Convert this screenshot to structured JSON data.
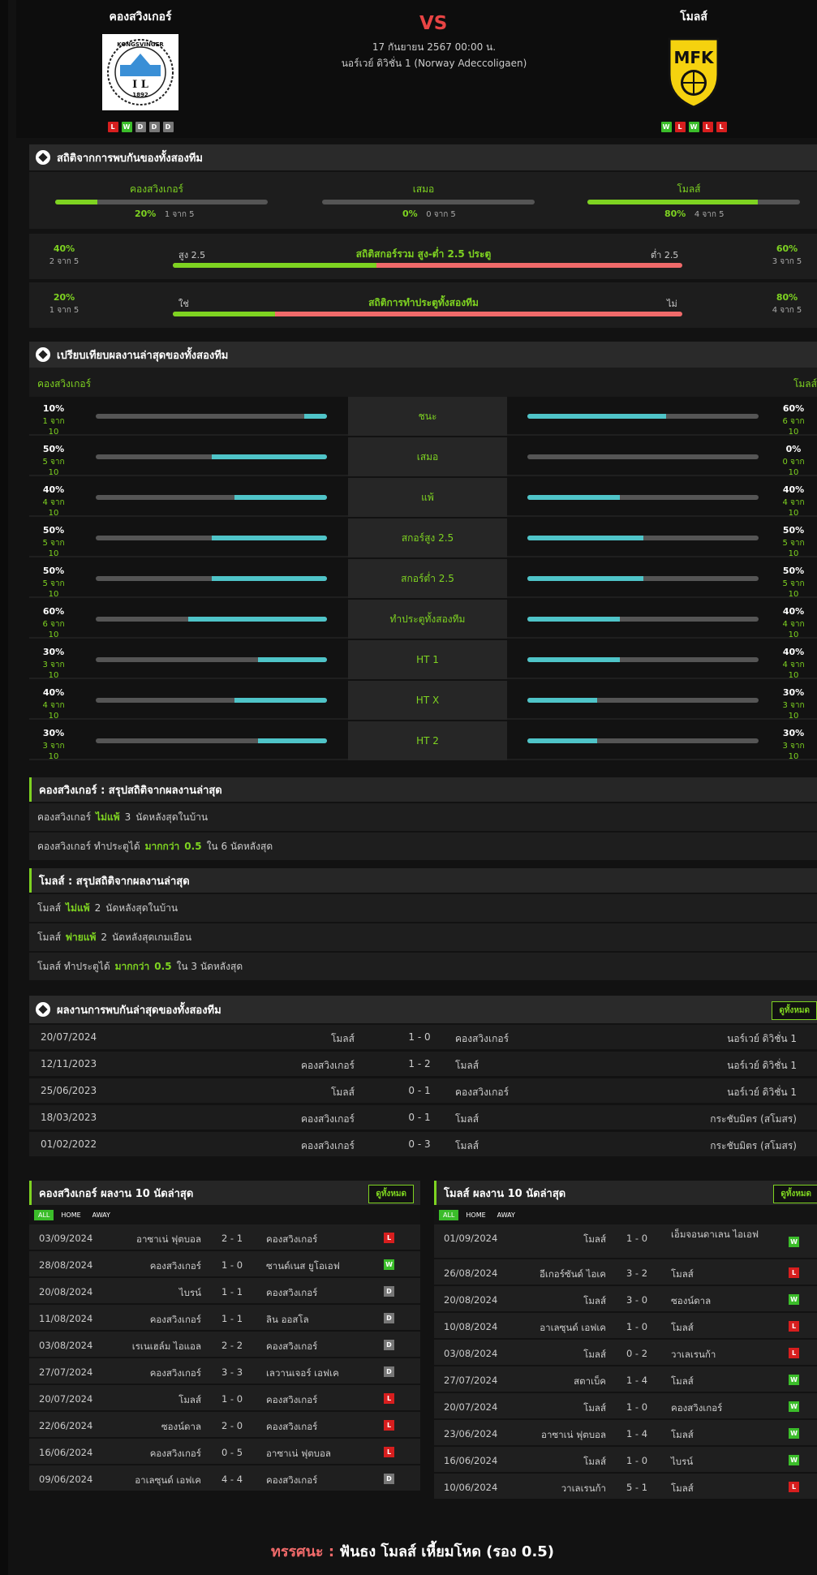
{
  "home": {
    "name": "คองสวิงเกอร์",
    "form": [
      "L",
      "W",
      "D",
      "D",
      "D"
    ]
  },
  "away": {
    "name": "โมลส์",
    "form": [
      "W",
      "L",
      "W",
      "L",
      "L"
    ]
  },
  "match": {
    "vs": "VS",
    "date": "17 กันยายน 2567 00:00 น.",
    "league": "นอร์เวย์ ดิวิชั่น 1 (Norway Adeccoligaen)"
  },
  "h2h_stats": {
    "title": "สถิติจากการพบกันของทั้งสองทีม",
    "home": {
      "label": "คองสวิงเกอร์",
      "pct": "20%",
      "count": "1 จาก 5",
      "value": 0.2
    },
    "draw": {
      "label": "เสมอ",
      "pct": "0%",
      "count": "0 จาก 5",
      "value": 0
    },
    "away": {
      "label": "โมลส์",
      "pct": "80%",
      "count": "4 จาก 5",
      "value": 0.8
    },
    "ou": {
      "title": "สถิติสกอร์รวม สูง-ต่ำ 2.5 ประตู",
      "left_pct": "40%",
      "left_count": "2 จาก 5",
      "right_pct": "60%",
      "right_count": "3 จาก 5",
      "over": "สูง 2.5",
      "under": "ต่ำ 2.5",
      "value": 0.4
    },
    "btts": {
      "title": "สถิติการทำประตูทั้งสองทีม",
      "left_pct": "20%",
      "left_count": "1 จาก 5",
      "right_pct": "80%",
      "right_count": "4 จาก 5",
      "yes": "ใช่",
      "no": "ไม่",
      "value": 0.2
    }
  },
  "compare": {
    "title": "เปรียบเทียบผลงานล่าสุดของทั้งสองทีม",
    "home": "คองสวิงเกอร์",
    "away": "โมลส์",
    "rows": [
      {
        "label": "ชนะ",
        "hp": "10%",
        "hc": "1 จาก 10",
        "hv": 0.1,
        "ap": "60%",
        "ac": "6 จาก 10",
        "av": 0.6
      },
      {
        "label": "เสมอ",
        "hp": "50%",
        "hc": "5 จาก 10",
        "hv": 0.5,
        "ap": "0%",
        "ac": "0 จาก 10",
        "av": 0
      },
      {
        "label": "แพ้",
        "hp": "40%",
        "hc": "4 จาก 10",
        "hv": 0.4,
        "ap": "40%",
        "ac": "4 จาก 10",
        "av": 0.4
      },
      {
        "label": "สกอร์สูง 2.5",
        "hp": "50%",
        "hc": "5 จาก 10",
        "hv": 0.5,
        "ap": "50%",
        "ac": "5 จาก 10",
        "av": 0.5
      },
      {
        "label": "สกอร์ต่ำ 2.5",
        "hp": "50%",
        "hc": "5 จาก 10",
        "hv": 0.5,
        "ap": "50%",
        "ac": "5 จาก 10",
        "av": 0.5
      },
      {
        "label": "ทำประตูทั้งสองทีม",
        "hp": "60%",
        "hc": "6 จาก 10",
        "hv": 0.6,
        "ap": "40%",
        "ac": "4 จาก 10",
        "av": 0.4
      },
      {
        "label": "HT 1",
        "hp": "30%",
        "hc": "3 จาก 10",
        "hv": 0.3,
        "ap": "40%",
        "ac": "4 จาก 10",
        "av": 0.4
      },
      {
        "label": "HT X",
        "hp": "40%",
        "hc": "4 จาก 10",
        "hv": 0.4,
        "ap": "30%",
        "ac": "3 จาก 10",
        "av": 0.3
      },
      {
        "label": "HT 2",
        "hp": "30%",
        "hc": "3 จาก 10",
        "hv": 0.3,
        "ap": "30%",
        "ac": "3 จาก 10",
        "av": 0.3
      }
    ]
  },
  "summary_home": {
    "title": "คองสวิงเกอร์ : สรุปสถิติจากผลงานล่าสุด",
    "rows": [
      [
        "คองสวิงเกอร์",
        "ไม่แพ้",
        "3",
        "นัดหลังสุดในบ้าน",
        "",
        ""
      ],
      [
        "คองสวิงเกอร์ ทำประตูได้",
        "มากกว่า",
        "0.5",
        "ใน 6 นัดหลังสุด",
        "",
        ""
      ]
    ]
  },
  "summary_away": {
    "title": "โมลส์ : สรุปสถิติจากผลงานล่าสุด",
    "rows": [
      [
        "โมลส์",
        "ไม่แพ้",
        "2",
        "นัดหลังสุดในบ้าน"
      ],
      [
        "โมลส์",
        "พ่ายแพ้",
        "2",
        "นัดหลังสุดเกมเยือน"
      ],
      [
        "โมลส์ ทำประตูได้",
        "มากกว่า",
        "0.5",
        "ใน 3 นัดหลังสุด"
      ]
    ]
  },
  "recent_h2h": {
    "title": "ผลงานการพบกันล่าสุดของทั้งสองทีม",
    "view_all": "ดูทั้งหมด",
    "rows": [
      [
        "20/07/2024",
        "โมลส์",
        "1 - 0",
        "คองสวิงเกอร์",
        "นอร์เวย์ ดิวิชั่น 1"
      ],
      [
        "12/11/2023",
        "คองสวิงเกอร์",
        "1 - 2",
        "โมลส์",
        "นอร์เวย์ ดิวิชั่น 1"
      ],
      [
        "25/06/2023",
        "โมลส์",
        "0 - 1",
        "คองสวิงเกอร์",
        "นอร์เวย์ ดิวิชั่น 1"
      ],
      [
        "18/03/2023",
        "คองสวิงเกอร์",
        "0 - 1",
        "โมลส์",
        "กระชับมิตร (สโมสร)"
      ],
      [
        "01/02/2022",
        "คองสวิงเกอร์",
        "0 - 3",
        "โมลส์",
        "กระชับมิตร (สโมสร)"
      ]
    ]
  },
  "last10_home": {
    "title": "คองสวิงเกอร์ ผลงาน 10 นัดล่าสุด",
    "view_all": "ดูทั้งหมด",
    "tabs": [
      "ALL",
      "HOME",
      "AWAY"
    ],
    "rows": [
      [
        "03/09/2024",
        "อาซาเน่ ฟุตบอล",
        "2 - 1",
        "คองสวิงเกอร์",
        "L"
      ],
      [
        "28/08/2024",
        "คองสวิงเกอร์",
        "1 - 0",
        "ซานด์เนส ยูโอเอฟ",
        "W"
      ],
      [
        "20/08/2024",
        "ไบรน์",
        "1 - 1",
        "คองสวิงเกอร์",
        "D"
      ],
      [
        "11/08/2024",
        "คองสวิงเกอร์",
        "1 - 1",
        "ลิน ออสโล",
        "D"
      ],
      [
        "03/08/2024",
        "เรเนเฮล์ม ไอแอล",
        "2 - 2",
        "คองสวิงเกอร์",
        "D"
      ],
      [
        "27/07/2024",
        "คองสวิงเกอร์",
        "3 - 3",
        "เลวานเจอร์ เอฟเค",
        "D"
      ],
      [
        "20/07/2024",
        "โมลส์",
        "1 - 0",
        "คองสวิงเกอร์",
        "L"
      ],
      [
        "22/06/2024",
        "ซองน์ดาล",
        "2 - 0",
        "คองสวิงเกอร์",
        "L"
      ],
      [
        "16/06/2024",
        "คองสวิงเกอร์",
        "0 - 5",
        "อาซาเน่ ฟุตบอล",
        "L"
      ],
      [
        "09/06/2024",
        "อาเลซุนด์ เอฟเค",
        "4 - 4",
        "คองสวิงเกอร์",
        "D"
      ]
    ]
  },
  "last10_away": {
    "title": "โมลส์ ผลงาน 10 นัดล่าสุด",
    "view_all": "ดูทั้งหมด",
    "tabs": [
      "ALL",
      "HOME",
      "AWAY"
    ],
    "rows": [
      [
        "01/09/2024",
        "โมลส์",
        "1 - 0",
        "เอ็มจอนดาเลน ไอเอฟ",
        "W"
      ],
      [
        "26/08/2024",
        "อีเกอร์ซันด์ ไอเค",
        "3 - 2",
        "โมลส์",
        "L"
      ],
      [
        "20/08/2024",
        "โมลส์",
        "3 - 0",
        "ซองน์ดาล",
        "W"
      ],
      [
        "10/08/2024",
        "อาเลซุนด์ เอฟเค",
        "1 - 0",
        "โมลส์",
        "L"
      ],
      [
        "03/08/2024",
        "โมลส์",
        "0 - 2",
        "วาเลเรนก้า",
        "L"
      ],
      [
        "27/07/2024",
        "สตาเบ็ค",
        "1 - 4",
        "โมลส์",
        "W"
      ],
      [
        "20/07/2024",
        "โมลส์",
        "1 - 0",
        "คองสวิงเกอร์",
        "W"
      ],
      [
        "23/06/2024",
        "อาซาเน่ ฟุตบอล",
        "1 - 4",
        "โมลส์",
        "W"
      ],
      [
        "16/06/2024",
        "โมลส์",
        "1 - 0",
        "ไบรน์",
        "W"
      ],
      [
        "10/06/2024",
        "วาเลเรนก้า",
        "5 - 1",
        "โมลส์",
        "L"
      ]
    ]
  },
  "prediction": {
    "label": "ทรรศนะ :",
    "text": "ฟันธง โมลส์ เหี้ยมโหด (รอง 0.5)"
  },
  "colors": {
    "accent": "#7ed321",
    "cyan": "#4fc4c8",
    "red": "#f06a6a",
    "loss": "#d71e1e",
    "win": "#3bbd2a",
    "draw": "#777777"
  }
}
